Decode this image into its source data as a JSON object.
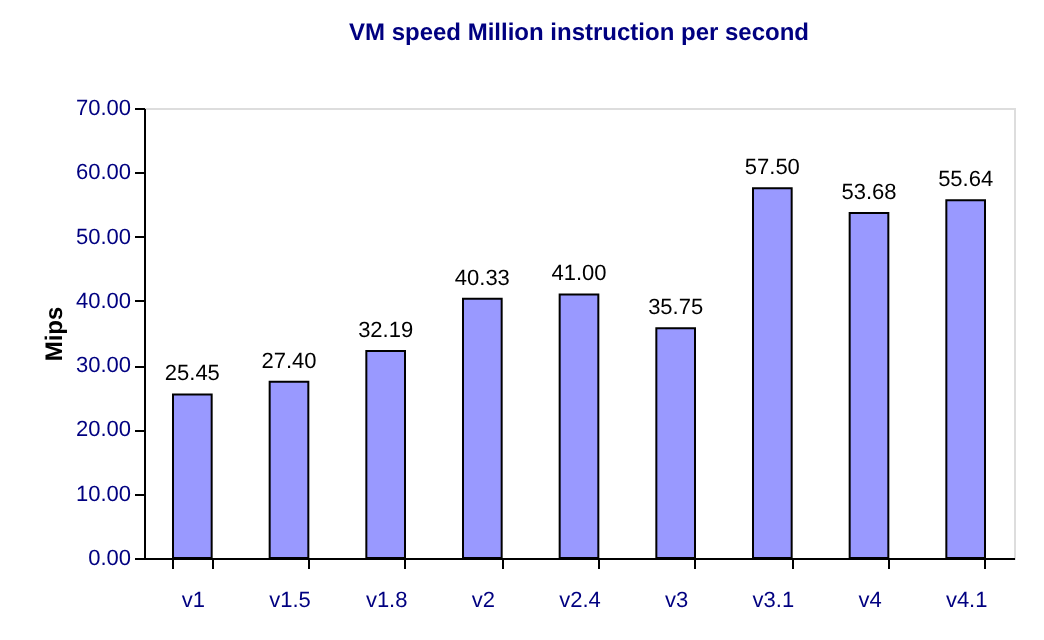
{
  "chart_data": {
    "type": "bar",
    "title": "VM speed  Million instruction per second",
    "ylabel": "Mips",
    "categories": [
      "v1",
      "v1.5",
      "v1.8",
      "v2",
      "v2.4",
      "v3",
      "v3.1",
      "v4",
      "v4.1"
    ],
    "values": [
      25.45,
      27.4,
      32.19,
      40.33,
      41.0,
      35.75,
      57.5,
      53.68,
      55.64
    ],
    "value_labels": [
      "25.45",
      "27.40",
      "32.19",
      "40.33",
      "41.00",
      "35.75",
      "57.50",
      "53.68",
      "55.64"
    ],
    "color": "#9999ff",
    "ylim": [
      0,
      70
    ],
    "yticks": [
      {
        "value": 0,
        "label": "0.00"
      },
      {
        "value": 10,
        "label": "10.00"
      },
      {
        "value": 20,
        "label": "20.00"
      },
      {
        "value": 30,
        "label": "30.00"
      },
      {
        "value": 40,
        "label": "40.00"
      },
      {
        "value": 50,
        "label": "50.00"
      },
      {
        "value": 60,
        "label": "60.00"
      },
      {
        "value": 70,
        "label": "70.00"
      }
    ],
    "grid": false
  }
}
